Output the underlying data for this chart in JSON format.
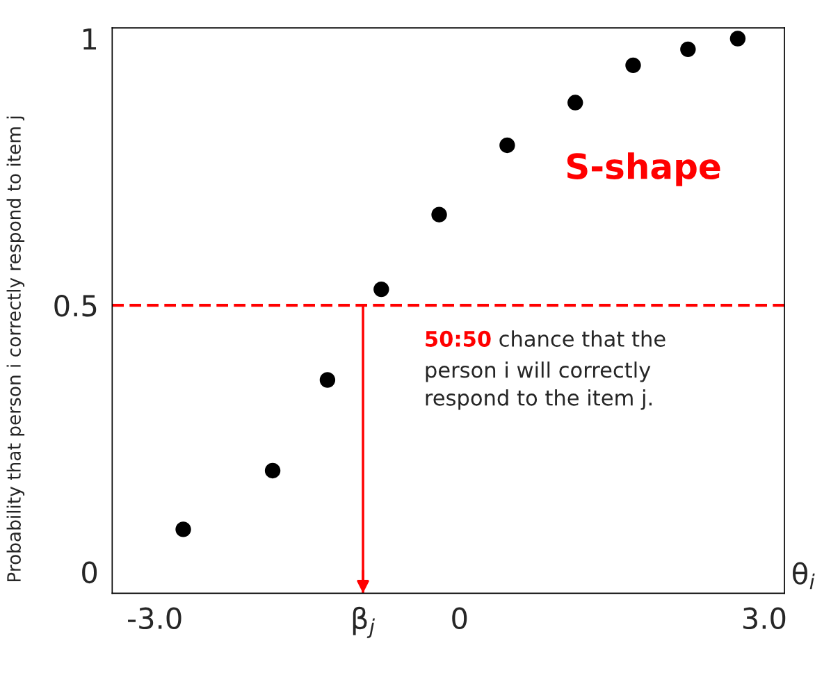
{
  "chart_data": {
    "type": "scatter",
    "ylabel": "Probability that person i correctly respond to item j",
    "xlabel": "θ$_{i}$",
    "x": [
      -2.72,
      -1.84,
      -1.3,
      -0.77,
      -0.2,
      0.47,
      1.14,
      1.71,
      2.25,
      2.74
    ],
    "series": [
      {
        "color": "#000000",
        "values": [
          0.08,
          0.19,
          0.36,
          0.53,
          0.67,
          0.8,
          0.88,
          0.95,
          0.98,
          1.0
        ]
      }
    ],
    "marker": "circle",
    "xlim": [
      -3.42,
      3.2
    ],
    "ylim": [
      -0.04,
      1.02
    ],
    "xticks": [
      {
        "value": -3,
        "label": "-3.0"
      },
      {
        "value": -0.95,
        "label": "β$_{j}$"
      },
      0,
      {
        "value": 3,
        "label": "3.0"
      }
    ],
    "yticks": [
      0,
      0.5,
      1
    ],
    "ref_lines": [
      {
        "axis": "y",
        "value": 0.5,
        "color": "#ff0000",
        "line_style": "dashed"
      },
      {
        "axis": "x",
        "value": -0.95,
        "color": "#ff0000",
        "line_style": "solid"
      }
    ],
    "annotations": [
      "S-shape",
      "50:50",
      "chance that the\nperson i will correctly\nrespond to the item j."
    ],
    "grid": false
  }
}
